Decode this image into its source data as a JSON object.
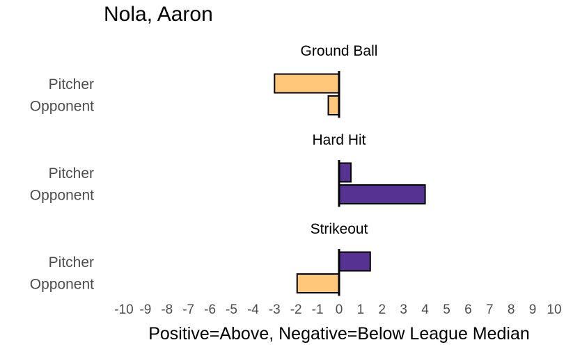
{
  "chart_data": {
    "type": "bar",
    "orientation": "horizontal",
    "title": "Nola, Aaron",
    "xlabel": "Positive=Above, Negative=Below League Median",
    "xlim": [
      -10,
      10
    ],
    "x_ticks": [
      -10,
      -9,
      -8,
      -7,
      -6,
      -5,
      -4,
      -3,
      -2,
      -1,
      0,
      1,
      2,
      3,
      4,
      5,
      6,
      7,
      8,
      9,
      10
    ],
    "grid": false,
    "categories": [
      "Pitcher",
      "Opponent"
    ],
    "panels": [
      {
        "title": "Ground Ball",
        "bars": [
          {
            "category": "Pitcher",
            "value": -3.0
          },
          {
            "category": "Opponent",
            "value": -0.5
          }
        ]
      },
      {
        "title": "Hard Hit",
        "bars": [
          {
            "category": "Pitcher",
            "value": 0.55
          },
          {
            "category": "Opponent",
            "value": 4.0
          }
        ]
      },
      {
        "title": "Strikeout",
        "bars": [
          {
            "category": "Pitcher",
            "value": 1.45
          },
          {
            "category": "Opponent",
            "value": -1.95
          }
        ]
      }
    ],
    "colors": {
      "negative": "#FFC77A",
      "positive": "#563293",
      "bar_stroke": "#000000",
      "zero_line": "#000000",
      "label_gray": "#4D4D4D"
    }
  }
}
